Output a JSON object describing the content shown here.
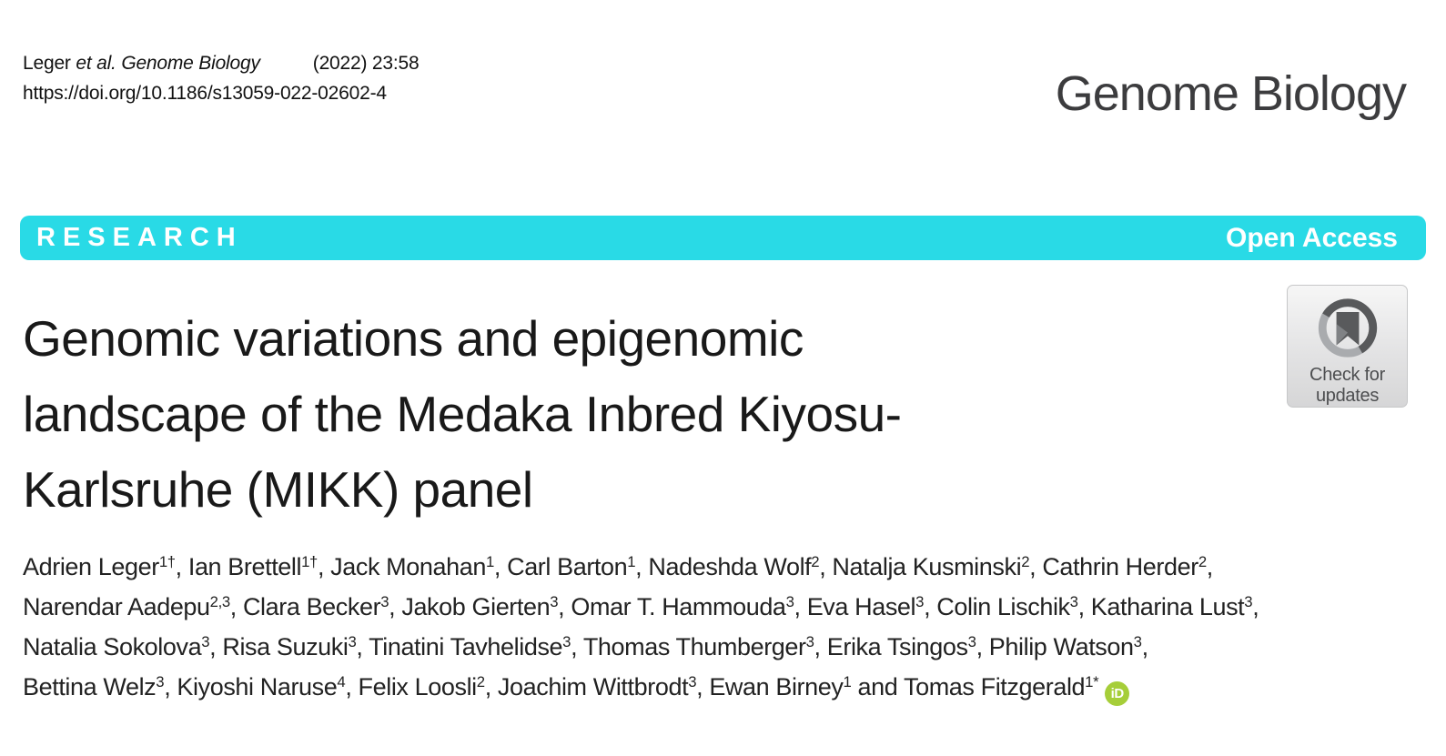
{
  "header": {
    "citation": {
      "prefix": "Leger ",
      "italic": "et al. Genome Biology",
      "issue": "(2022) 23:58"
    },
    "doi": "https://doi.org/10.1186/s13059-022-02602-4",
    "journal_name": "Genome Biology"
  },
  "banner": {
    "type_label": "RESEARCH",
    "access_label": "Open Access",
    "color": "#29DAE6"
  },
  "check_updates": {
    "line1": "Check for",
    "line2": "updates",
    "ring_dark": "#58595b",
    "ring_light": "#a9abae",
    "ribbon_dark": "#595a5c",
    "ribbon_light": "#808285"
  },
  "title": {
    "lines": [
      "Genomic variations and epigenomic",
      "landscape of the Medaka Inbred Kiyosu-",
      "Karlsruhe (MIKK) panel"
    ]
  },
  "authors": {
    "orcid_label": "iD",
    "orcid_color": "#A6CE39",
    "lines": [
      [
        {
          "name": "Adrien Leger",
          "sup": "1†",
          "trail": ", "
        },
        {
          "name": "Ian Brettell",
          "sup": "1†",
          "trail": ", "
        },
        {
          "name": "Jack Monahan",
          "sup": "1",
          "trail": ", "
        },
        {
          "name": "Carl Barton",
          "sup": "1",
          "trail": ", "
        },
        {
          "name": "Nadeshda Wolf",
          "sup": "2",
          "trail": ", "
        },
        {
          "name": "Natalja Kusminski",
          "sup": "2",
          "trail": ", "
        },
        {
          "name": "Cathrin Herder",
          "sup": "2",
          "trail": ","
        }
      ],
      [
        {
          "name": "Narendar Aadepu",
          "sup": "2,3",
          "trail": ", "
        },
        {
          "name": "Clara Becker",
          "sup": "3",
          "trail": ", "
        },
        {
          "name": "Jakob Gierten",
          "sup": "3",
          "trail": ", "
        },
        {
          "name": "Omar T. Hammouda",
          "sup": "3",
          "trail": ", "
        },
        {
          "name": "Eva Hasel",
          "sup": "3",
          "trail": ", "
        },
        {
          "name": "Colin Lischik",
          "sup": "3",
          "trail": ", "
        },
        {
          "name": "Katharina Lust",
          "sup": "3",
          "trail": ","
        }
      ],
      [
        {
          "name": "Natalia Sokolova",
          "sup": "3",
          "trail": ", "
        },
        {
          "name": "Risa Suzuki",
          "sup": "3",
          "trail": ", "
        },
        {
          "name": "Tinatini Tavhelidse",
          "sup": "3",
          "trail": ", "
        },
        {
          "name": "Thomas Thumberger",
          "sup": "3",
          "trail": ", "
        },
        {
          "name": "Erika Tsingos",
          "sup": "3",
          "trail": ", "
        },
        {
          "name": "Philip Watson",
          "sup": "3",
          "trail": ","
        }
      ],
      [
        {
          "name": "Bettina Welz",
          "sup": "3",
          "trail": ", "
        },
        {
          "name": "Kiyoshi Naruse",
          "sup": "4",
          "trail": ", "
        },
        {
          "name": "Felix Loosli",
          "sup": "2",
          "trail": ", "
        },
        {
          "name": "Joachim Wittbrodt",
          "sup": "3",
          "trail": ", "
        },
        {
          "name": "Ewan Birney",
          "sup": "1",
          "trail": " and "
        },
        {
          "name": "Tomas Fitzgerald",
          "sup": "1*",
          "trail": "",
          "orcid": true
        }
      ]
    ]
  }
}
